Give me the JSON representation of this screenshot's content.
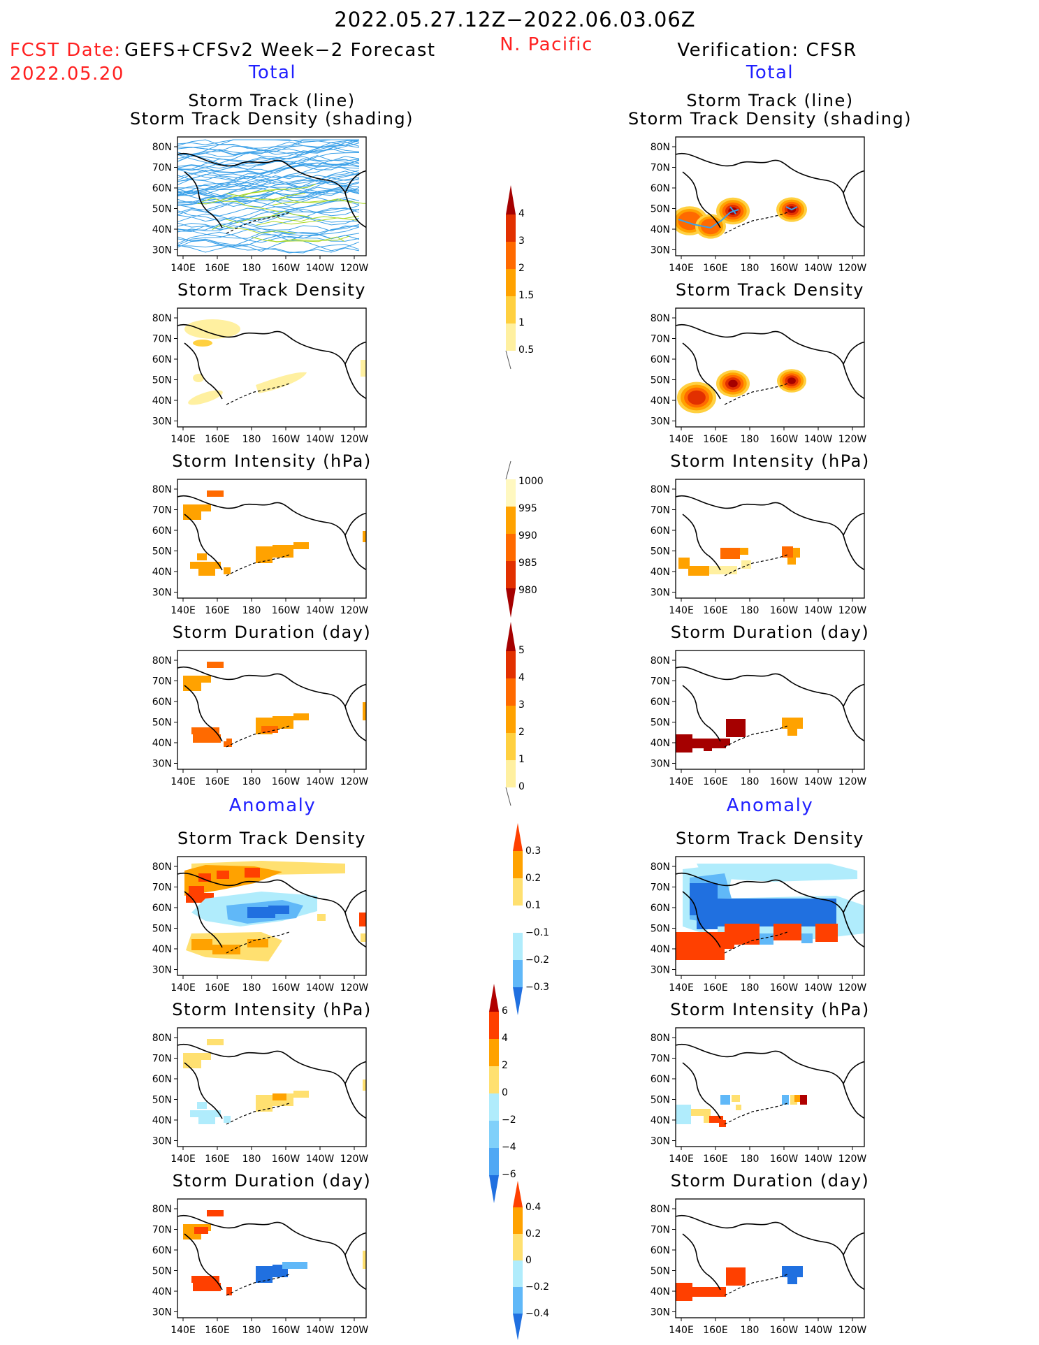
{
  "header": {
    "period": "2022.05.27.12Z−2022.06.03.06Z",
    "region": "N. Pacific",
    "fcst_label": "FCST Date:",
    "fcst_model": "GEFS+CFSv2 Week−2 Forecast",
    "fcst_date": "2022.05.20",
    "verif_label": "Verification: CFSR",
    "total_left": "Total",
    "total_right": "Total",
    "anomaly_left": "Anomaly",
    "anomaly_right": "Anomaly"
  },
  "axes": {
    "lon_ticks": [
      "140E",
      "160E",
      "180",
      "160W",
      "140W",
      "120W"
    ],
    "lat_ticks": [
      "80N",
      "70N",
      "60N",
      "50N",
      "40N",
      "30N"
    ]
  },
  "panels": {
    "row1_title_a": "Storm Track (line)",
    "row1_title_b": "Storm Track Density (shading)",
    "density": "Storm Track Density",
    "intensity": "Storm Intensity (hPa)",
    "duration": "Storm Duration (day)"
  },
  "colorbars": {
    "density_total": {
      "labels": [
        "4",
        "3",
        "2",
        "1.5",
        "1",
        "0.5"
      ],
      "colors": [
        "#a50000",
        "#e23000",
        "#ff6a00",
        "#ffa200",
        "#ffd040",
        "#fff0a0"
      ]
    },
    "intensity_total": {
      "labels": [
        "1000",
        "995",
        "990",
        "985",
        "980"
      ],
      "colors": [
        "#fff8c0",
        "#ffa200",
        "#ff6a00",
        "#e23000",
        "#a50000"
      ]
    },
    "duration_total": {
      "labels": [
        "5",
        "4",
        "3",
        "2",
        "1",
        "0"
      ],
      "colors": [
        "#a50000",
        "#e23000",
        "#ff6a00",
        "#ffa200",
        "#ffd040",
        "#fff0a0"
      ]
    },
    "density_anom": {
      "labels": [
        "0.3",
        "0.2",
        "0.1",
        "−0.1",
        "−0.2",
        "−0.3"
      ],
      "colors": [
        "#ff4000",
        "#ffa200",
        "#ffe070",
        "#ffffff",
        "#b0ecfc",
        "#60b8f8",
        "#2070e0"
      ]
    },
    "intensity_anom": {
      "labels": [
        "6",
        "4",
        "2",
        "0",
        "−2",
        "−4",
        "−6"
      ],
      "colors": [
        "#b00000",
        "#ff4000",
        "#ffa200",
        "#ffe070",
        "#b0ecfc",
        "#80d0fa",
        "#50a8f4",
        "#2070e0"
      ]
    },
    "duration_anom": {
      "labels": [
        "0.4",
        "0.2",
        "0",
        "−0.2",
        "−0.4"
      ],
      "colors": [
        "#ff4000",
        "#ffa200",
        "#ffe070",
        "#b0ecfc",
        "#60b8f8",
        "#2070e0"
      ]
    }
  },
  "colors": {
    "header_red": "#ff2020",
    "header_blue": "#2020ff",
    "track_blue": "#3aa0e8"
  }
}
